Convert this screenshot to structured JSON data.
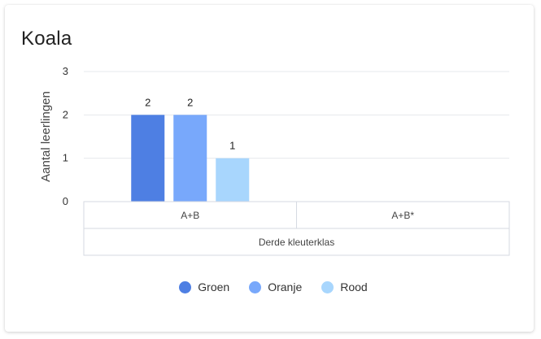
{
  "card": {
    "title": "Koala"
  },
  "chart_data": {
    "type": "bar",
    "title": "Koala",
    "ylabel": "Aantal leerlingen",
    "xlabel": "",
    "ylim": [
      0,
      3
    ],
    "yticks": [
      0,
      1,
      2,
      3
    ],
    "grid": true,
    "legend_position": "bottom",
    "categories": [
      "A+B",
      "A+B*"
    ],
    "category_group": "Derde kleuterklas",
    "series": [
      {
        "name": "Groen",
        "color": "#4e7fe3",
        "values": [
          2,
          null
        ]
      },
      {
        "name": "Oranje",
        "color": "#78a8fb",
        "values": [
          2,
          null
        ]
      },
      {
        "name": "Rood",
        "color": "#a8d6fd",
        "values": [
          1,
          null
        ]
      }
    ]
  }
}
